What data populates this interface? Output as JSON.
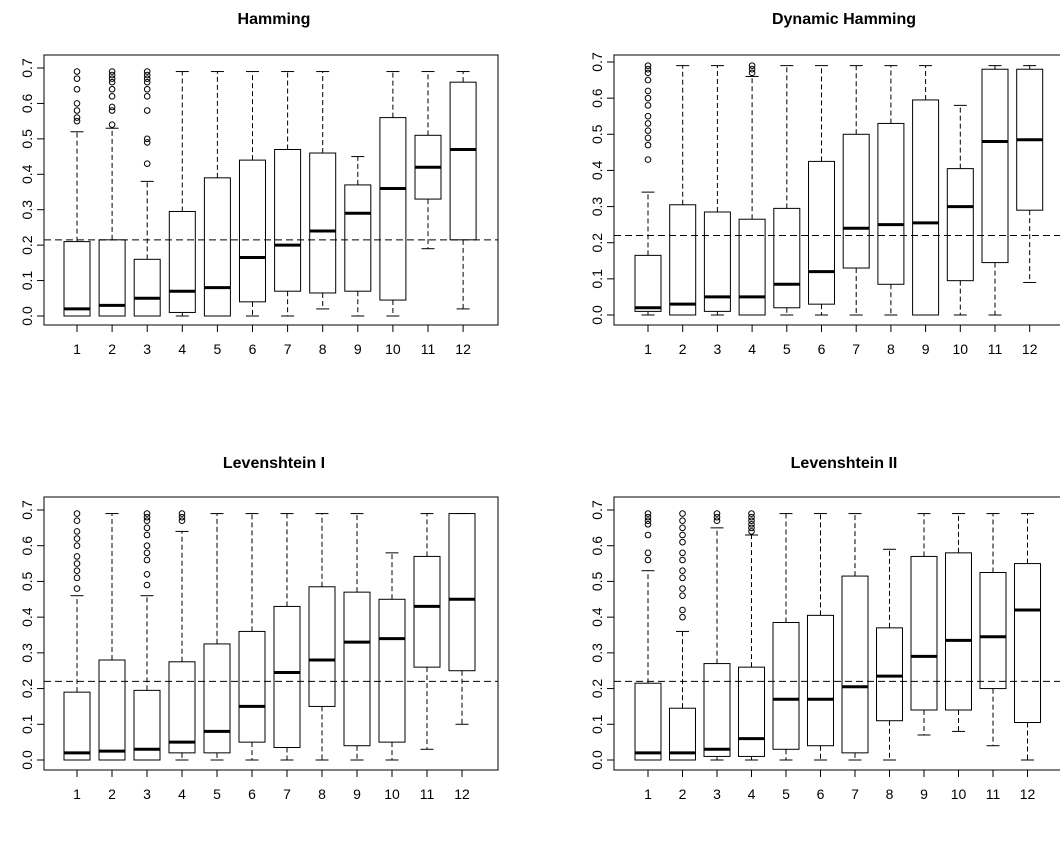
{
  "chart_data": [
    {
      "type": "boxplot",
      "title": "Hamming",
      "xlabel": "",
      "ylabel": "",
      "categories": [
        "1",
        "2",
        "3",
        "4",
        "5",
        "6",
        "7",
        "8",
        "9",
        "10",
        "11",
        "12"
      ],
      "y_ticks": [
        "0.0",
        "0.1",
        "0.2",
        "0.3",
        "0.4",
        "0.5",
        "0.6",
        "0.7"
      ],
      "ylim": [
        0,
        0.7
      ],
      "reference_line": 0.215,
      "boxes": [
        {
          "min": 0.0,
          "q1": 0.0,
          "median": 0.02,
          "q3": 0.21,
          "max": 0.52,
          "outliers": [
            0.55,
            0.56,
            0.58,
            0.6,
            0.64,
            0.67,
            0.69
          ]
        },
        {
          "min": 0.0,
          "q1": 0.0,
          "median": 0.03,
          "q3": 0.215,
          "max": 0.53,
          "outliers": [
            0.54,
            0.58,
            0.59,
            0.62,
            0.64,
            0.66,
            0.67,
            0.68,
            0.69
          ]
        },
        {
          "min": 0.0,
          "q1": 0.0,
          "median": 0.05,
          "q3": 0.16,
          "max": 0.38,
          "outliers": [
            0.43,
            0.49,
            0.5,
            0.58,
            0.62,
            0.64,
            0.66,
            0.67,
            0.68,
            0.69
          ]
        },
        {
          "min": 0.0,
          "q1": 0.01,
          "median": 0.07,
          "q3": 0.295,
          "max": 0.69,
          "outliers": []
        },
        {
          "min": 0.0,
          "q1": 0.0,
          "median": 0.08,
          "q3": 0.39,
          "max": 0.69,
          "outliers": []
        },
        {
          "min": 0.0,
          "q1": 0.04,
          "median": 0.165,
          "q3": 0.44,
          "max": 0.69,
          "outliers": []
        },
        {
          "min": 0.0,
          "q1": 0.07,
          "median": 0.2,
          "q3": 0.47,
          "max": 0.69,
          "outliers": []
        },
        {
          "min": 0.02,
          "q1": 0.065,
          "median": 0.24,
          "q3": 0.46,
          "max": 0.69,
          "outliers": []
        },
        {
          "min": 0.0,
          "q1": 0.07,
          "median": 0.29,
          "q3": 0.37,
          "max": 0.45,
          "outliers": []
        },
        {
          "min": 0.0,
          "q1": 0.045,
          "median": 0.36,
          "q3": 0.56,
          "max": 0.69,
          "outliers": []
        },
        {
          "min": 0.19,
          "q1": 0.33,
          "median": 0.42,
          "q3": 0.51,
          "max": 0.69,
          "outliers": []
        },
        {
          "min": 0.02,
          "q1": 0.215,
          "median": 0.47,
          "q3": 0.66,
          "max": 0.69,
          "outliers": []
        }
      ]
    },
    {
      "type": "boxplot",
      "title": "Dynamic Hamming",
      "xlabel": "",
      "ylabel": "",
      "categories": [
        "1",
        "2",
        "3",
        "4",
        "5",
        "6",
        "7",
        "8",
        "9",
        "10",
        "11",
        "12"
      ],
      "y_ticks": [
        "0.0",
        "0.1",
        "0.2",
        "0.3",
        "0.4",
        "0.5",
        "0.6",
        "0.7"
      ],
      "ylim": [
        0,
        0.7
      ],
      "reference_line": 0.22,
      "boxes": [
        {
          "min": 0.0,
          "q1": 0.01,
          "median": 0.02,
          "q3": 0.165,
          "max": 0.34,
          "outliers": [
            0.43,
            0.47,
            0.49,
            0.51,
            0.53,
            0.55,
            0.58,
            0.6,
            0.62,
            0.65,
            0.67,
            0.68,
            0.69
          ]
        },
        {
          "min": 0.0,
          "q1": 0.0,
          "median": 0.03,
          "q3": 0.305,
          "max": 0.69,
          "outliers": []
        },
        {
          "min": 0.0,
          "q1": 0.01,
          "median": 0.05,
          "q3": 0.285,
          "max": 0.69,
          "outliers": []
        },
        {
          "min": 0.0,
          "q1": 0.0,
          "median": 0.05,
          "q3": 0.265,
          "max": 0.66,
          "outliers": [
            0.67,
            0.68,
            0.69
          ]
        },
        {
          "min": 0.0,
          "q1": 0.02,
          "median": 0.085,
          "q3": 0.295,
          "max": 0.69,
          "outliers": []
        },
        {
          "min": 0.0,
          "q1": 0.03,
          "median": 0.12,
          "q3": 0.425,
          "max": 0.69,
          "outliers": []
        },
        {
          "min": 0.0,
          "q1": 0.13,
          "median": 0.24,
          "q3": 0.5,
          "max": 0.69,
          "outliers": []
        },
        {
          "min": 0.0,
          "q1": 0.085,
          "median": 0.25,
          "q3": 0.53,
          "max": 0.69,
          "outliers": []
        },
        {
          "min": 0.0,
          "q1": 0.0,
          "median": 0.255,
          "q3": 0.595,
          "max": 0.69,
          "outliers": []
        },
        {
          "min": 0.0,
          "q1": 0.095,
          "median": 0.3,
          "q3": 0.405,
          "max": 0.58,
          "outliers": []
        },
        {
          "min": 0.0,
          "q1": 0.145,
          "median": 0.48,
          "q3": 0.68,
          "max": 0.69,
          "outliers": []
        },
        {
          "min": 0.09,
          "q1": 0.29,
          "median": 0.485,
          "q3": 0.68,
          "max": 0.69,
          "outliers": []
        }
      ]
    },
    {
      "type": "boxplot",
      "title": "Levenshtein I",
      "xlabel": "",
      "ylabel": "",
      "categories": [
        "1",
        "2",
        "3",
        "4",
        "5",
        "6",
        "7",
        "8",
        "9",
        "10",
        "11",
        "12"
      ],
      "y_ticks": [
        "0.0",
        "0.1",
        "0.2",
        "0.3",
        "0.4",
        "0.5",
        "0.6",
        "0.7"
      ],
      "ylim": [
        0,
        0.7
      ],
      "reference_line": 0.22,
      "boxes": [
        {
          "min": 0.0,
          "q1": 0.0,
          "median": 0.02,
          "q3": 0.19,
          "max": 0.46,
          "outliers": [
            0.48,
            0.51,
            0.53,
            0.55,
            0.57,
            0.6,
            0.62,
            0.64,
            0.67,
            0.69
          ]
        },
        {
          "min": 0.0,
          "q1": 0.0,
          "median": 0.025,
          "q3": 0.28,
          "max": 0.69,
          "outliers": []
        },
        {
          "min": 0.0,
          "q1": 0.0,
          "median": 0.03,
          "q3": 0.195,
          "max": 0.46,
          "outliers": [
            0.49,
            0.52,
            0.56,
            0.58,
            0.6,
            0.63,
            0.65,
            0.67,
            0.68,
            0.69
          ]
        },
        {
          "min": 0.0,
          "q1": 0.02,
          "median": 0.05,
          "q3": 0.275,
          "max": 0.64,
          "outliers": [
            0.67,
            0.68,
            0.69
          ]
        },
        {
          "min": 0.0,
          "q1": 0.02,
          "median": 0.08,
          "q3": 0.325,
          "max": 0.69,
          "outliers": []
        },
        {
          "min": 0.0,
          "q1": 0.05,
          "median": 0.15,
          "q3": 0.36,
          "max": 0.69,
          "outliers": []
        },
        {
          "min": 0.0,
          "q1": 0.035,
          "median": 0.245,
          "q3": 0.43,
          "max": 0.69,
          "outliers": []
        },
        {
          "min": 0.0,
          "q1": 0.15,
          "median": 0.28,
          "q3": 0.485,
          "max": 0.69,
          "outliers": []
        },
        {
          "min": 0.0,
          "q1": 0.04,
          "median": 0.33,
          "q3": 0.47,
          "max": 0.69,
          "outliers": []
        },
        {
          "min": 0.0,
          "q1": 0.05,
          "median": 0.34,
          "q3": 0.45,
          "max": 0.58,
          "outliers": []
        },
        {
          "min": 0.03,
          "q1": 0.26,
          "median": 0.43,
          "q3": 0.57,
          "max": 0.69,
          "outliers": []
        },
        {
          "min": 0.1,
          "q1": 0.25,
          "median": 0.45,
          "q3": 0.69,
          "max": 0.69,
          "outliers": []
        }
      ]
    },
    {
      "type": "boxplot",
      "title": "Levenshtein II",
      "xlabel": "",
      "ylabel": "",
      "categories": [
        "1",
        "2",
        "3",
        "4",
        "5",
        "6",
        "7",
        "8",
        "9",
        "10",
        "11",
        "12"
      ],
      "y_ticks": [
        "0.0",
        "0.1",
        "0.2",
        "0.3",
        "0.4",
        "0.5",
        "0.6",
        "0.7"
      ],
      "ylim": [
        0,
        0.7
      ],
      "reference_line": 0.22,
      "boxes": [
        {
          "min": 0.0,
          "q1": 0.0,
          "median": 0.02,
          "q3": 0.215,
          "max": 0.53,
          "outliers": [
            0.56,
            0.58,
            0.63,
            0.66,
            0.67,
            0.68,
            0.69
          ]
        },
        {
          "min": 0.0,
          "q1": 0.0,
          "median": 0.02,
          "q3": 0.145,
          "max": 0.36,
          "outliers": [
            0.4,
            0.42,
            0.46,
            0.48,
            0.51,
            0.53,
            0.56,
            0.58,
            0.61,
            0.63,
            0.65,
            0.67,
            0.69
          ]
        },
        {
          "min": 0.0,
          "q1": 0.01,
          "median": 0.03,
          "q3": 0.27,
          "max": 0.65,
          "outliers": [
            0.67,
            0.68,
            0.69
          ]
        },
        {
          "min": 0.0,
          "q1": 0.01,
          "median": 0.06,
          "q3": 0.26,
          "max": 0.63,
          "outliers": [
            0.64,
            0.65,
            0.66,
            0.67,
            0.68,
            0.69
          ]
        },
        {
          "min": 0.0,
          "q1": 0.03,
          "median": 0.17,
          "q3": 0.385,
          "max": 0.69,
          "outliers": []
        },
        {
          "min": 0.0,
          "q1": 0.04,
          "median": 0.17,
          "q3": 0.405,
          "max": 0.69,
          "outliers": []
        },
        {
          "min": 0.0,
          "q1": 0.02,
          "median": 0.205,
          "q3": 0.515,
          "max": 0.69,
          "outliers": []
        },
        {
          "min": 0.0,
          "q1": 0.11,
          "median": 0.235,
          "q3": 0.37,
          "max": 0.59,
          "outliers": []
        },
        {
          "min": 0.07,
          "q1": 0.14,
          "median": 0.29,
          "q3": 0.57,
          "max": 0.69,
          "outliers": []
        },
        {
          "min": 0.08,
          "q1": 0.14,
          "median": 0.335,
          "q3": 0.58,
          "max": 0.69,
          "outliers": []
        },
        {
          "min": 0.04,
          "q1": 0.2,
          "median": 0.345,
          "q3": 0.525,
          "max": 0.69,
          "outliers": []
        },
        {
          "min": 0.0,
          "q1": 0.105,
          "median": 0.42,
          "q3": 0.55,
          "max": 0.69,
          "outliers": []
        }
      ]
    }
  ]
}
